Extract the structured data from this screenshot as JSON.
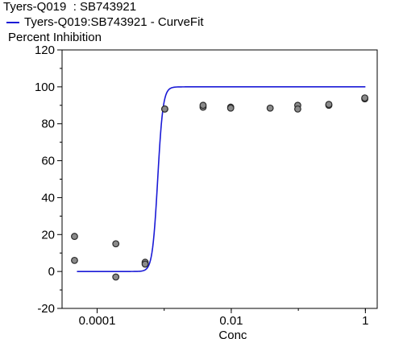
{
  "chart_data": {
    "type": "scatter",
    "title": "Tyers-Q019  : SB743921",
    "legend": [
      {
        "label": "Tyers-Q019:SB743921 - CurveFit",
        "color": "#1a1ad6"
      }
    ],
    "ylabel": "Percent Inhibition",
    "xlabel": "Conc",
    "x_scale": "log",
    "xlim": [
      3e-05,
      1.5
    ],
    "ylim": [
      -20,
      120
    ],
    "x_ticks": [
      {
        "value": 0.0001,
        "label": "0.0001"
      },
      {
        "value": 0.01,
        "label": "0.01"
      },
      {
        "value": 1,
        "label": "1"
      }
    ],
    "y_ticks": [
      -20,
      0,
      20,
      40,
      60,
      80,
      100,
      120
    ],
    "points": [
      {
        "x": 4.6e-05,
        "y": 19
      },
      {
        "x": 4.6e-05,
        "y": 6
      },
      {
        "x": 0.00019,
        "y": 15
      },
      {
        "x": 0.00019,
        "y": -3
      },
      {
        "x": 0.00052,
        "y": 5
      },
      {
        "x": 0.00052,
        "y": 4
      },
      {
        "x": 0.00102,
        "y": 88
      },
      {
        "x": 0.00102,
        "y": 88
      },
      {
        "x": 0.0038,
        "y": 89
      },
      {
        "x": 0.0038,
        "y": 90
      },
      {
        "x": 0.0098,
        "y": 89
      },
      {
        "x": 0.0098,
        "y": 88.5
      },
      {
        "x": 0.038,
        "y": 88.5
      },
      {
        "x": 0.098,
        "y": 90
      },
      {
        "x": 0.098,
        "y": 88
      },
      {
        "x": 0.285,
        "y": 90
      },
      {
        "x": 0.285,
        "y": 90.5
      },
      {
        "x": 0.98,
        "y": 93.5
      },
      {
        "x": 0.98,
        "y": 94
      }
    ],
    "curve": {
      "bottom": 0,
      "top": 100,
      "ec50": 0.0008,
      "hill": 11,
      "x_range": [
        5e-05,
        1.0
      ]
    },
    "colors": {
      "curve": "#1a1ad6",
      "point_fill": "#8a8a8a",
      "point_stroke": "#2a2a2a"
    }
  }
}
